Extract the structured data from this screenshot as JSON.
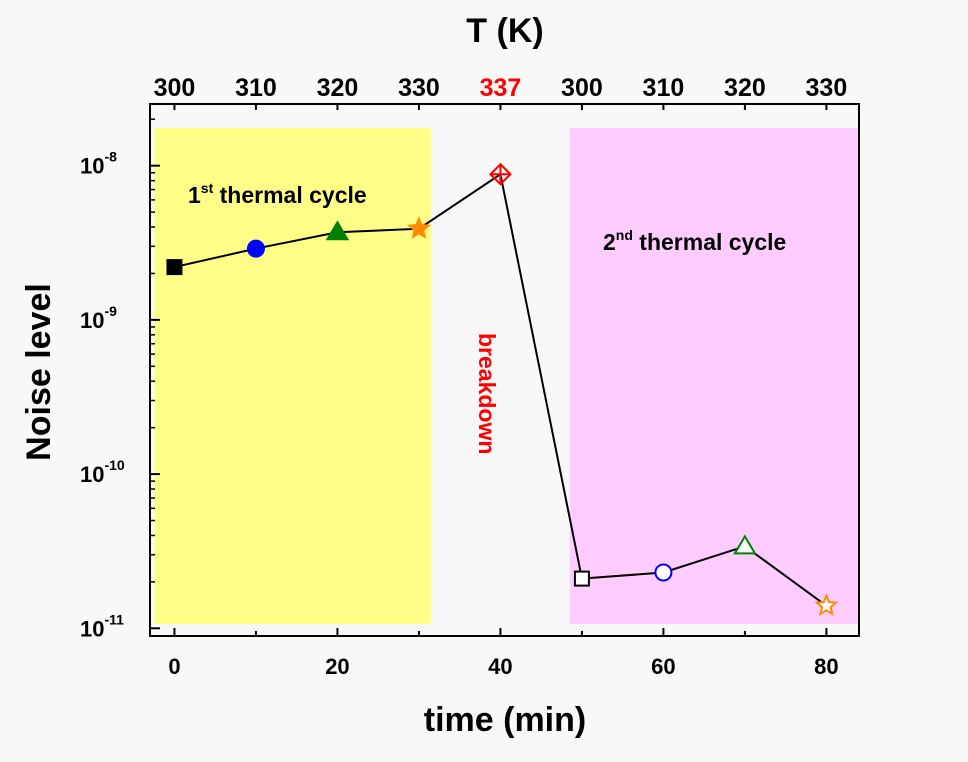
{
  "chart_data": {
    "type": "scatter",
    "xlabel": "time (min)",
    "ylabel": "Noise level",
    "top_axis_label": "T (K)",
    "xlim": [
      -3,
      84
    ],
    "ylim_log10": [
      -11.05,
      -7.6
    ],
    "y_scale": "log",
    "x_ticks": [
      0,
      20,
      40,
      60,
      80
    ],
    "x_tick_labels": [
      "0",
      "20",
      "40",
      "60",
      "80"
    ],
    "y_ticks": [
      {
        "value": -11,
        "base": "10",
        "exp": "-11"
      },
      {
        "value": -10,
        "base": "10",
        "exp": "-10"
      },
      {
        "value": -9,
        "base": "10",
        "exp": "-9"
      },
      {
        "value": -8,
        "base": "10",
        "exp": "-8"
      }
    ],
    "top_ticks": [
      {
        "x": 0,
        "label": "300",
        "color": "#000000"
      },
      {
        "x": 10,
        "label": "310",
        "color": "#000000"
      },
      {
        "x": 20,
        "label": "320",
        "color": "#000000"
      },
      {
        "x": 30,
        "label": "330",
        "color": "#000000"
      },
      {
        "x": 40,
        "label": "337",
        "color": "#ff0000"
      },
      {
        "x": 50,
        "label": "300",
        "color": "#000000"
      },
      {
        "x": 60,
        "label": "310",
        "color": "#000000"
      },
      {
        "x": 70,
        "label": "320",
        "color": "#000000"
      },
      {
        "x": 80,
        "label": "330",
        "color": "#000000"
      }
    ],
    "points": [
      {
        "x": 0,
        "y": 2.2e-09,
        "marker": "square",
        "fill": "#000000",
        "stroke": "#000000"
      },
      {
        "x": 10,
        "y": 2.9e-09,
        "marker": "circle",
        "fill": "#0000ff",
        "stroke": "#0000ff"
      },
      {
        "x": 20,
        "y": 3.7e-09,
        "marker": "triangle",
        "fill": "#008000",
        "stroke": "#008000"
      },
      {
        "x": 30,
        "y": 3.9e-09,
        "marker": "star",
        "fill": "#ff8c00",
        "stroke": "#ff8c00"
      },
      {
        "x": 40,
        "y": 8.8e-09,
        "marker": "crossed-diamond",
        "fill": "none",
        "stroke": "#ff0000"
      },
      {
        "x": 50,
        "y": 2.1e-11,
        "marker": "square",
        "fill": "#ffffff",
        "stroke": "#000000"
      },
      {
        "x": 60,
        "y": 2.3e-11,
        "marker": "circle",
        "fill": "#ffffff",
        "stroke": "#0000ff"
      },
      {
        "x": 70,
        "y": 3.4e-11,
        "marker": "triangle",
        "fill": "#ffffff",
        "stroke": "#008000"
      },
      {
        "x": 80,
        "y": 1.4e-11,
        "marker": "star",
        "fill": "#ffffff",
        "stroke": "#ff8c00"
      }
    ],
    "regions": [
      {
        "x_from": -2.5,
        "x_to": 31.5,
        "color": "#ffff88",
        "label_main": "1",
        "label_sup": "st",
        "label_rest": " thermal cycle"
      },
      {
        "x_from": 48.5,
        "x_to": 84,
        "color": "#ffccff",
        "label_main": "2",
        "label_sup": "nd",
        "label_rest": " thermal cycle"
      }
    ],
    "annotations": [
      {
        "text": "breakdown",
        "color": "#ff0000",
        "rotation": 90
      }
    ],
    "grid": false,
    "colors": {
      "line": "#000000",
      "axis": "#000000"
    }
  }
}
